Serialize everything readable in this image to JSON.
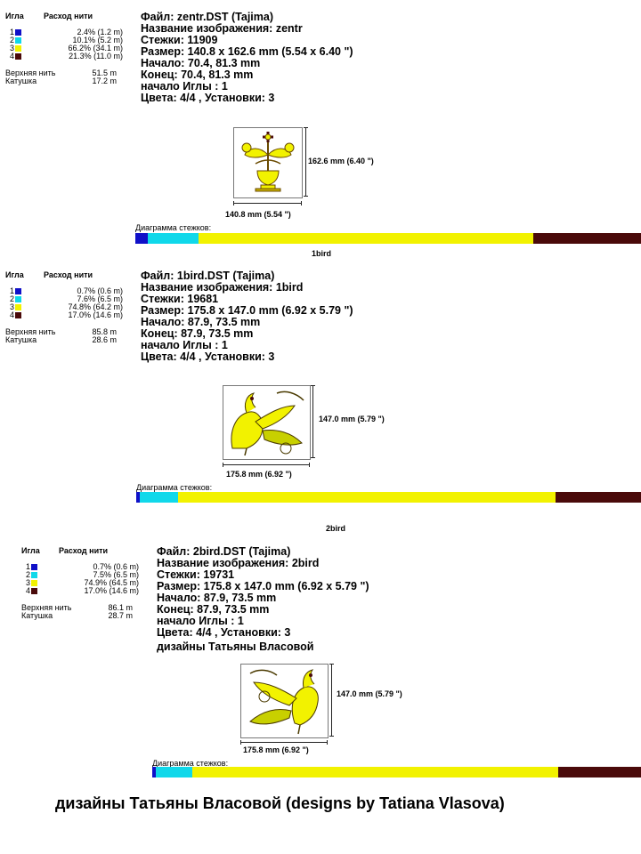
{
  "labels": {
    "needle": "Игла",
    "thread_usage": "Расход нити",
    "top_thread": "Верхняя нить",
    "bobbin": "Катушка",
    "stitch_diagram": "Диаграмма стежков:"
  },
  "colors": {
    "needle1": "#1010c8",
    "needle2": "#10d8ea",
    "needle3": "#f2f200",
    "needle4": "#4a0a0a"
  },
  "sections": [
    {
      "title": "",
      "needles": [
        {
          "num": "1",
          "pct": "2.4% (1.2 m)"
        },
        {
          "num": "2",
          "pct": "10.1% (5.2 m)"
        },
        {
          "num": "3",
          "pct": "66.2% (34.1 m)"
        },
        {
          "num": "4",
          "pct": "21.3% (11.0 m)"
        }
      ],
      "top_thread_value": "51.5 m",
      "bobbin_value": "17.2 m",
      "info": [
        "Файл: zentr.DST  (Tajima)",
        "Название изображения: zentr",
        "Стежки: 11909",
        "Размер: 140.8 x 162.6 mm (5.54 x 6.40 \")",
        "Начало: 70.4, 81.3 mm",
        "Конец: 70.4, 81.3 mm",
        "начало Иглы : 1",
        "Цвета: 4/4 , Установки: 3"
      ],
      "width_label": "140.8 mm (5.54 \")",
      "height_label": "162.6 mm (6.40 \")",
      "bar_fractions": [
        0.024,
        0.101,
        0.662,
        0.213
      ],
      "design_icon": "vase-tree-icon"
    },
    {
      "title": "1bird",
      "needles": [
        {
          "num": "1",
          "pct": "0.7% (0.6 m)"
        },
        {
          "num": "2",
          "pct": "7.6% (6.5 m)"
        },
        {
          "num": "3",
          "pct": "74.8% (64.2 m)"
        },
        {
          "num": "4",
          "pct": "17.0% (14.6 m)"
        }
      ],
      "top_thread_value": "85.8 m",
      "bobbin_value": "28.6 m",
      "info": [
        "Файл: 1bird.DST  (Tajima)",
        "Название изображения: 1bird",
        "Стежки: 19681",
        "Размер: 175.8 x 147.0 mm (6.92 x 5.79 \")",
        "Начало: 87.9, 73.5 mm",
        "Конец: 87.9, 73.5 mm",
        "начало Иглы : 1",
        "Цвета: 4/4 , Установки: 3"
      ],
      "width_label": "175.8 mm (6.92 \")",
      "height_label": "147.0 mm (5.79 \")",
      "bar_fractions": [
        0.007,
        0.076,
        0.748,
        0.17
      ],
      "design_icon": "bird-icon"
    },
    {
      "title": "2bird",
      "needles": [
        {
          "num": "1",
          "pct": "0.7% (0.6 m)"
        },
        {
          "num": "2",
          "pct": "7.5% (6.5 m)"
        },
        {
          "num": "3",
          "pct": "74.9% (64.5 m)"
        },
        {
          "num": "4",
          "pct": "17.0% (14.6 m)"
        }
      ],
      "top_thread_value": "86.1 m",
      "bobbin_value": "28.7 m",
      "info": [
        "Файл: 2bird.DST  (Tajima)",
        "Название изображения: 2bird",
        "Стежки: 19731",
        "Размер: 175.8 x 147.0 mm (6.92 x 5.79 \")",
        "Начало: 87.9, 73.5 mm",
        "Конец: 87.9, 73.5 mm",
        "начало Иглы : 1",
        "Цвета: 4/4 , Установки: 3"
      ],
      "extra_line": "дизайны Татьяны Власовой",
      "width_label": "175.8 mm (6.92 \")",
      "height_label": "147.0 mm (5.79 \")",
      "bar_fractions": [
        0.007,
        0.075,
        0.749,
        0.17
      ],
      "design_icon": "bird-icon"
    }
  ],
  "credit": "дизайны Татьяны Власовой (designs by Tatiana Vlasova)"
}
